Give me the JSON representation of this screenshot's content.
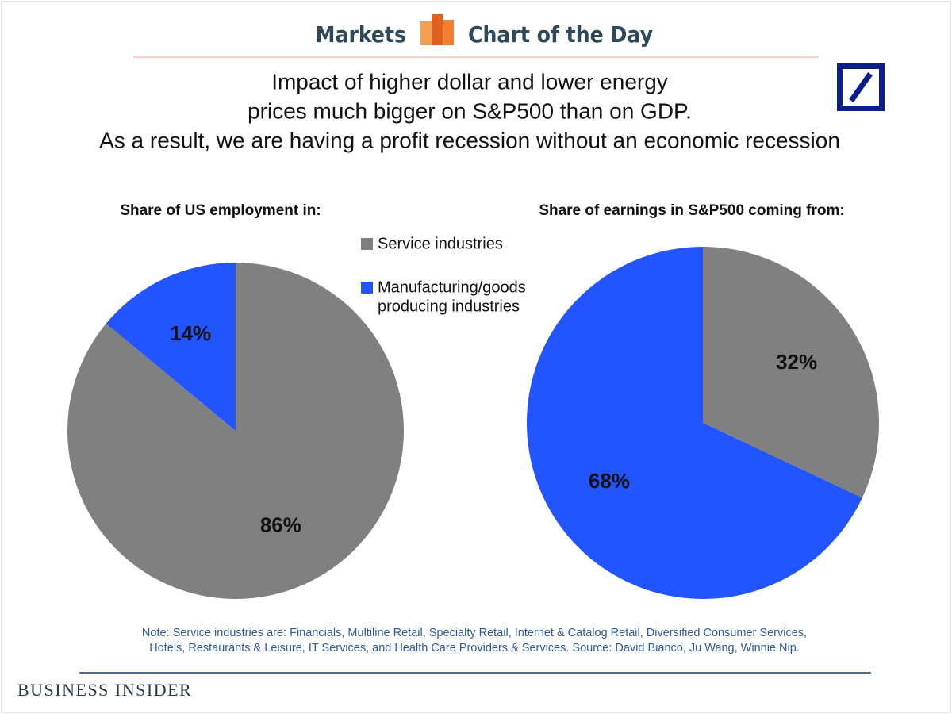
{
  "header": {
    "left": "Markets",
    "right": "Chart of the Day"
  },
  "title_lines": [
    "Impact of higher dollar and lower energy",
    "prices much bigger on S&P500 than on GDP.",
    "As a result, we are having a profit recession without an economic recession"
  ],
  "legend": [
    {
      "label_lines": [
        "Service industries"
      ],
      "color": "#808080"
    },
    {
      "label_lines": [
        "Manufacturing/goods",
        "producing industries"
      ],
      "color": "#2255ff"
    }
  ],
  "chart_data": [
    {
      "type": "pie",
      "title": "Share of US employment in:",
      "values": [
        86,
        14
      ],
      "value_labels": [
        "86%",
        "14%"
      ],
      "colors": [
        "#808080",
        "#2255ff"
      ]
    },
    {
      "type": "pie",
      "title": "Share of earnings in S&P500 coming from:",
      "values": [
        32,
        68
      ],
      "value_labels": [
        "32%",
        "68%"
      ],
      "colors": [
        "#808080",
        "#2255ff"
      ]
    }
  ],
  "note_lines": [
    "Note: Service industries are: Financials, Multiline Retail, Specialty Retail, Internet & Catalog Retail, Diversified Consumer Services,",
    "Hotels, Restaurants & Leisure, IT Services, and Health Care Providers & Services. Source: David Bianco, Ju Wang, Winnie Nip."
  ],
  "footer": "BUSINESS INSIDER"
}
